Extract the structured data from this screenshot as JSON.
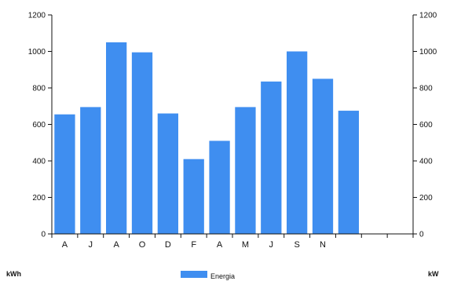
{
  "chart_data": {
    "type": "bar",
    "categories": [
      "A",
      "J",
      "A",
      "O",
      "D",
      "F",
      "A",
      "M",
      "J",
      "S",
      "N",
      "",
      "",
      ""
    ],
    "series": [
      {
        "name": "Energia",
        "color": "#3f8ef0",
        "values": [
          655,
          695,
          1050,
          995,
          660,
          410,
          510,
          695,
          835,
          1000,
          850,
          675,
          null,
          null
        ]
      }
    ],
    "ylim": [
      0,
      1200
    ],
    "yticks": [
      0,
      200,
      400,
      600,
      800,
      1000,
      1200
    ],
    "ylabel_left": "kWh",
    "ylabel_right": "kW",
    "legend_position": "bottom-center",
    "grid": false
  }
}
